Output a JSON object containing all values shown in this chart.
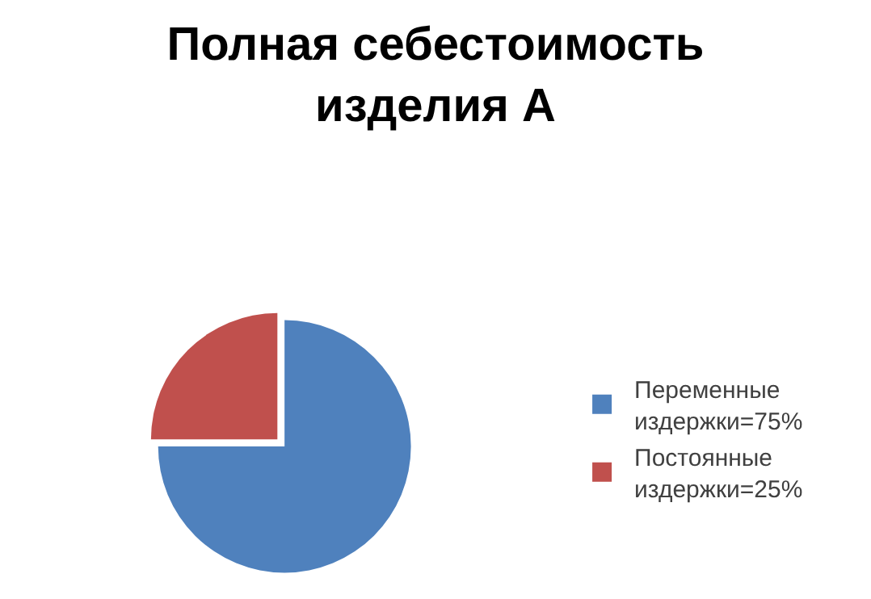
{
  "chart_data": {
    "type": "pie",
    "title": "Полная себестоимость изделия А",
    "categories": [
      "Переменные издержки=75%",
      "Постоянные издержки=25%"
    ],
    "values": [
      75,
      25
    ],
    "colors": [
      "#4f81bd",
      "#c0504d"
    ],
    "legend": "right"
  }
}
